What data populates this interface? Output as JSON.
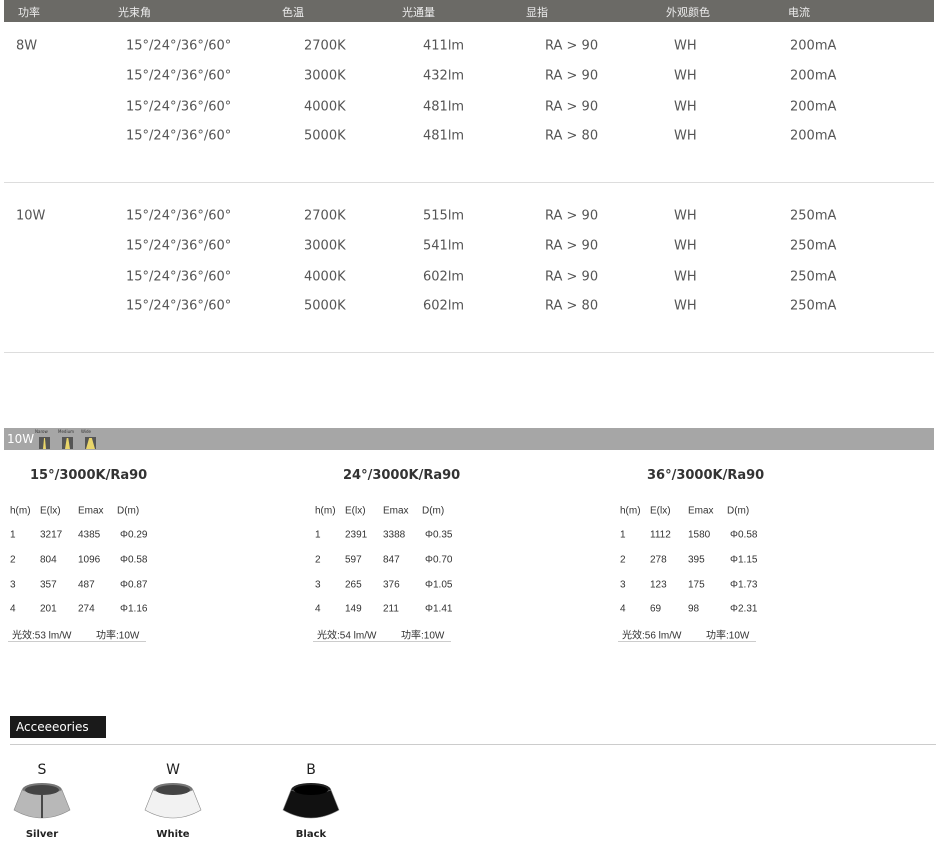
{
  "spec_table": {
    "headers": [
      "功率",
      "光束角",
      "色温",
      "光通量",
      "显指",
      "外观颜色",
      "电流"
    ],
    "groups": [
      {
        "power": "8W",
        "rows": [
          [
            "15°/24°/36°/60°",
            "2700K",
            "411lm",
            "RA > 90",
            "WH",
            "200mA"
          ],
          [
            "15°/24°/36°/60°",
            "3000K",
            "432lm",
            "RA > 90",
            "WH",
            "200mA"
          ],
          [
            "15°/24°/36°/60°",
            "4000K",
            "481lm",
            "RA > 90",
            "WH",
            "200mA"
          ],
          [
            "15°/24°/36°/60°",
            "5000K",
            "481lm",
            "RA > 80",
            "WH",
            "200mA"
          ]
        ]
      },
      {
        "power": "10W",
        "rows": [
          [
            "15°/24°/36°/60°",
            "2700K",
            "515lm",
            "RA > 90",
            "WH",
            "250mA"
          ],
          [
            "15°/24°/36°/60°",
            "3000K",
            "541lm",
            "RA > 90",
            "WH",
            "250mA"
          ],
          [
            "15°/24°/36°/60°",
            "4000K",
            "602lm",
            "RA > 90",
            "WH",
            "250mA"
          ],
          [
            "15°/24°/36°/60°",
            "5000K",
            "602lm",
            "RA > 80",
            "WH",
            "250mA"
          ]
        ]
      }
    ]
  },
  "photometric": {
    "power_label": "10W",
    "beam_icons": [
      {
        "label": "Narow",
        "icon": "narrow-beam-icon"
      },
      {
        "label": "Medium",
        "icon": "medium-beam-icon"
      },
      {
        "label": "Wide",
        "icon": "wide-beam-icon"
      }
    ],
    "headers": [
      "h(m)",
      "E(lx)",
      "Emax",
      "D(m)"
    ],
    "tables": [
      {
        "title": "15°/3000K/Ra90",
        "rows": [
          [
            "1",
            "3217",
            "4385",
            "Φ0.29"
          ],
          [
            "2",
            "804",
            "1096",
            "Φ0.58"
          ],
          [
            "3",
            "357",
            "487",
            "Φ0.87"
          ],
          [
            "4",
            "201",
            "274",
            "Φ1.16"
          ]
        ],
        "efficacy": "光效:53 lm/W",
        "power": "功率:10W"
      },
      {
        "title": "24°/3000K/Ra90",
        "rows": [
          [
            "1",
            "2391",
            "3388",
            "Φ0.35"
          ],
          [
            "2",
            "597",
            "847",
            "Φ0.70"
          ],
          [
            "3",
            "265",
            "376",
            "Φ1.05"
          ],
          [
            "4",
            "149",
            "211",
            "Φ1.41"
          ]
        ],
        "efficacy": "光效:54 lm/W",
        "power": "功率:10W"
      },
      {
        "title": "36°/3000K/Ra90",
        "rows": [
          [
            "1",
            "1112",
            "1580",
            "Φ0.58"
          ],
          [
            "2",
            "278",
            "395",
            "Φ1.15"
          ],
          [
            "3",
            "123",
            "175",
            "Φ1.73"
          ],
          [
            "4",
            "69",
            "98",
            "Φ2.31"
          ]
        ],
        "efficacy": "光效:56 lm/W",
        "power": "功率:10W"
      }
    ]
  },
  "accessories": {
    "title": "Acceeeories",
    "items": [
      {
        "letter": "S",
        "name": "Silver",
        "color": "#b8b8b8"
      },
      {
        "letter": "W",
        "name": "White",
        "color": "#f2f2f2"
      },
      {
        "letter": "B",
        "name": "Black",
        "color": "#111111"
      }
    ]
  }
}
